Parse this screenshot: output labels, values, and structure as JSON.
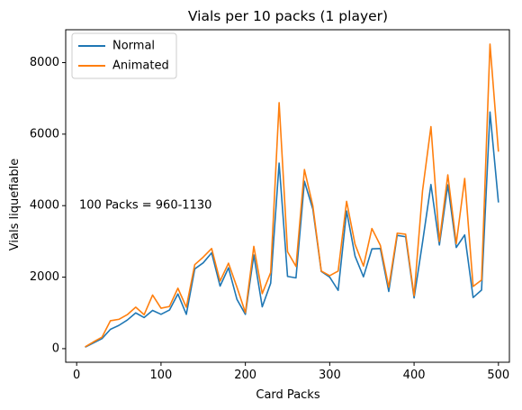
{
  "chart_data": {
    "type": "line",
    "title": "Vials per 10 packs (1 player)",
    "xlabel": "Card Packs",
    "ylabel": "Vials liquefiable",
    "xlim": [
      -13,
      513
    ],
    "ylim": [
      -380,
      8920
    ],
    "xticks": [
      0,
      100,
      200,
      300,
      400,
      500
    ],
    "yticks": [
      0,
      2000,
      4000,
      6000,
      8000
    ],
    "grid": false,
    "legend_position": "top-left",
    "x": [
      10,
      20,
      30,
      40,
      50,
      60,
      70,
      80,
      90,
      100,
      110,
      120,
      130,
      140,
      150,
      160,
      170,
      180,
      190,
      200,
      210,
      220,
      230,
      240,
      250,
      260,
      270,
      280,
      290,
      300,
      310,
      320,
      330,
      340,
      350,
      360,
      370,
      380,
      390,
      400,
      410,
      420,
      430,
      440,
      450,
      460,
      470,
      480,
      490,
      500
    ],
    "series": [
      {
        "name": "Normal",
        "color": "#1f77b4",
        "values": [
          40,
          160,
          280,
          540,
          650,
          800,
          1000,
          870,
          1070,
          960,
          1080,
          1530,
          960,
          2230,
          2400,
          2680,
          1750,
          2260,
          1380,
          960,
          2620,
          1170,
          1830,
          5190,
          2020,
          1980,
          4680,
          3900,
          2160,
          2000,
          1630,
          3850,
          2590,
          2010,
          2790,
          2800,
          1600,
          3170,
          3130,
          1420,
          2970,
          4590,
          2900,
          4580,
          2830,
          3180,
          1430,
          1640,
          6620,
          4090
        ]
      },
      {
        "name": "Animated",
        "color": "#ff7f0e",
        "values": [
          50,
          190,
          320,
          780,
          820,
          950,
          1160,
          950,
          1500,
          1130,
          1180,
          1690,
          1160,
          2350,
          2560,
          2800,
          1890,
          2390,
          1720,
          1010,
          2860,
          1540,
          2130,
          6880,
          2710,
          2300,
          5010,
          3990,
          2170,
          2040,
          2170,
          4120,
          2920,
          2310,
          3360,
          2890,
          1720,
          3230,
          3200,
          1480,
          4410,
          6210,
          3000,
          4860,
          2940,
          4760,
          1740,
          1920,
          8520,
          5510
        ]
      }
    ],
    "annotations": [
      {
        "text": "100 Packs = 960-1130",
        "x": 10,
        "y": 4000
      }
    ]
  }
}
